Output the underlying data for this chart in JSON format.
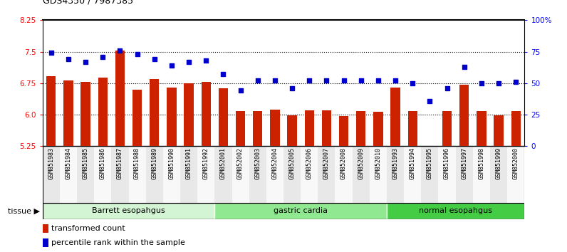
{
  "title": "GDS4350 / 7987385",
  "samples": [
    "GSM851983",
    "GSM851984",
    "GSM851985",
    "GSM851986",
    "GSM851987",
    "GSM851988",
    "GSM851989",
    "GSM851990",
    "GSM851991",
    "GSM851992",
    "GSM852001",
    "GSM852002",
    "GSM852003",
    "GSM852004",
    "GSM852005",
    "GSM852006",
    "GSM852007",
    "GSM852008",
    "GSM852009",
    "GSM852010",
    "GSM851993",
    "GSM851994",
    "GSM851995",
    "GSM851996",
    "GSM851997",
    "GSM851998",
    "GSM851999",
    "GSM852000"
  ],
  "bar_values": [
    6.92,
    6.82,
    6.78,
    6.88,
    7.52,
    6.6,
    6.85,
    6.65,
    6.75,
    6.78,
    6.62,
    6.08,
    6.08,
    6.12,
    5.98,
    6.1,
    6.1,
    5.97,
    6.08,
    6.07,
    6.65,
    6.08,
    5.25,
    6.08,
    6.72,
    6.08,
    5.98,
    6.08
  ],
  "percentile_values": [
    74,
    69,
    67,
    71,
    76,
    73,
    69,
    64,
    67,
    68,
    57,
    44,
    52,
    52,
    46,
    52,
    52,
    52,
    52,
    52,
    52,
    50,
    36,
    46,
    63,
    50,
    50,
    51
  ],
  "groups": [
    {
      "label": "Barrett esopahgus",
      "start": 0,
      "end": 10,
      "color": "#d4f5d4"
    },
    {
      "label": "gastric cardia",
      "start": 10,
      "end": 20,
      "color": "#90e890"
    },
    {
      "label": "normal esopahgus",
      "start": 20,
      "end": 28,
      "color": "#44cc44"
    }
  ],
  "ylim_left": [
    5.25,
    8.25
  ],
  "ylim_right": [
    0,
    100
  ],
  "yticks_left": [
    5.25,
    6.0,
    6.75,
    7.5,
    8.25
  ],
  "yticks_right": [
    0,
    25,
    50,
    75,
    100
  ],
  "ytick_labels_right": [
    "0",
    "25",
    "50",
    "75",
    "100%"
  ],
  "hlines": [
    6.0,
    6.75,
    7.5
  ],
  "bar_color": "#cc2200",
  "dot_color": "#0000cc",
  "bar_width": 0.55,
  "legend_bar_label": "transformed count",
  "legend_dot_label": "percentile rank within the sample",
  "tissue_label": "tissue"
}
